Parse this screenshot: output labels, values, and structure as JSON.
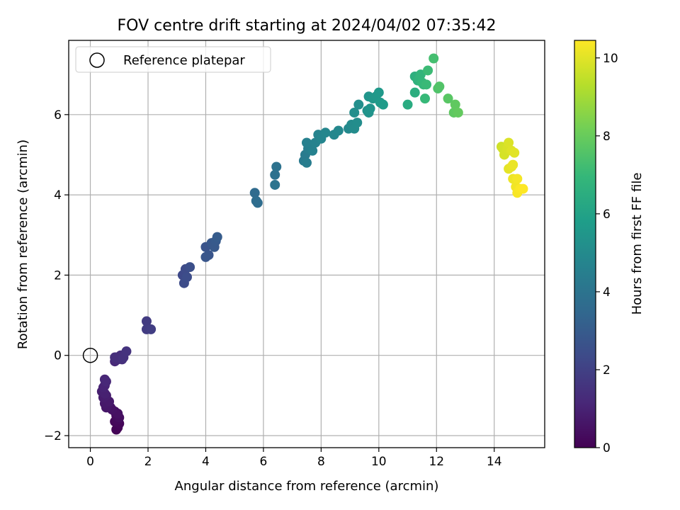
{
  "chart_data": {
    "type": "scatter",
    "title": "FOV centre drift starting at 2024/04/02 07:35:42",
    "xlabel": "Angular distance from reference (arcmin)",
    "ylabel": "Rotation from reference (arcmin)",
    "xlim": [
      -0.75,
      15.75
    ],
    "ylim": [
      -2.3,
      7.85
    ],
    "xticks": [
      0,
      2,
      4,
      6,
      8,
      10,
      12,
      14
    ],
    "yticks": [
      -2,
      0,
      2,
      4,
      6
    ],
    "grid": true,
    "legend": {
      "placement": "top-left",
      "entries": [
        "Reference platepar"
      ]
    },
    "reference_point": {
      "x": 0,
      "y": 0,
      "marker": "hollow-circle",
      "edge_color": "#000000"
    },
    "colorbar": {
      "label": "Hours from first FF file",
      "min": 0,
      "max": 10.45,
      "ticks": [
        0,
        2,
        4,
        6,
        8,
        10
      ],
      "colormap": "viridis",
      "colormap_stops": [
        "#440154",
        "#482878",
        "#3e4a89",
        "#31688e",
        "#26828e",
        "#1f9e89",
        "#35b779",
        "#6ece58",
        "#b5de2b",
        "#fde725"
      ]
    },
    "series": [
      {
        "points": [
          {
            "x": 0.9,
            "y": -1.85,
            "c": 0.05
          },
          {
            "x": 0.95,
            "y": -1.8,
            "c": 0.1
          },
          {
            "x": 1.0,
            "y": -1.7,
            "c": 0.15
          },
          {
            "x": 0.85,
            "y": -1.65,
            "c": 0.2
          },
          {
            "x": 0.95,
            "y": -1.6,
            "c": 0.25
          },
          {
            "x": 0.9,
            "y": -1.5,
            "c": 0.3
          },
          {
            "x": 1.0,
            "y": -1.55,
            "c": 0.35
          },
          {
            "x": 0.85,
            "y": -1.4,
            "c": 0.4
          },
          {
            "x": 0.95,
            "y": -1.45,
            "c": 0.45
          },
          {
            "x": 0.75,
            "y": -1.35,
            "c": 0.5
          },
          {
            "x": 0.7,
            "y": -1.3,
            "c": 0.55
          },
          {
            "x": 0.6,
            "y": -1.25,
            "c": 0.6
          },
          {
            "x": 0.55,
            "y": -1.3,
            "c": 0.65
          },
          {
            "x": 0.5,
            "y": -1.2,
            "c": 0.7
          },
          {
            "x": 0.65,
            "y": -1.15,
            "c": 0.75
          },
          {
            "x": 0.45,
            "y": -1.05,
            "c": 0.8
          },
          {
            "x": 0.55,
            "y": -1.0,
            "c": 0.85
          },
          {
            "x": 0.4,
            "y": -0.9,
            "c": 0.9
          },
          {
            "x": 0.5,
            "y": -0.95,
            "c": 0.95
          },
          {
            "x": 0.45,
            "y": -0.8,
            "c": 1.0
          },
          {
            "x": 0.5,
            "y": -0.75,
            "c": 1.05
          },
          {
            "x": 0.5,
            "y": -0.6,
            "c": 1.1
          },
          {
            "x": 0.55,
            "y": -0.65,
            "c": 1.15
          },
          {
            "x": 0.85,
            "y": -0.15,
            "c": 1.2
          },
          {
            "x": 0.9,
            "y": -0.05,
            "c": 1.25
          },
          {
            "x": 0.95,
            "y": -0.1,
            "c": 1.3
          },
          {
            "x": 1.05,
            "y": 0.0,
            "c": 1.35
          },
          {
            "x": 0.85,
            "y": -0.05,
            "c": 1.4
          },
          {
            "x": 1.1,
            "y": -0.1,
            "c": 1.45
          },
          {
            "x": 1.15,
            "y": -0.05,
            "c": 1.5
          },
          {
            "x": 1.25,
            "y": 0.1,
            "c": 1.55
          },
          {
            "x": 1.95,
            "y": 0.85,
            "c": 1.8
          },
          {
            "x": 1.95,
            "y": 0.65,
            "c": 1.85
          },
          {
            "x": 2.1,
            "y": 0.65,
            "c": 1.9
          },
          {
            "x": 3.2,
            "y": 2.0,
            "c": 2.3
          },
          {
            "x": 3.3,
            "y": 2.15,
            "c": 2.35
          },
          {
            "x": 3.25,
            "y": 1.8,
            "c": 2.4
          },
          {
            "x": 3.35,
            "y": 1.95,
            "c": 2.45
          },
          {
            "x": 3.45,
            "y": 2.2,
            "c": 2.5
          },
          {
            "x": 4.0,
            "y": 2.7,
            "c": 2.7
          },
          {
            "x": 4.1,
            "y": 2.5,
            "c": 2.75
          },
          {
            "x": 4.0,
            "y": 2.45,
            "c": 2.8
          },
          {
            "x": 4.2,
            "y": 2.8,
            "c": 2.85
          },
          {
            "x": 4.3,
            "y": 2.7,
            "c": 2.9
          },
          {
            "x": 4.35,
            "y": 2.85,
            "c": 2.95
          },
          {
            "x": 4.4,
            "y": 2.95,
            "c": 3.0
          },
          {
            "x": 5.7,
            "y": 4.05,
            "c": 3.6
          },
          {
            "x": 5.75,
            "y": 3.85,
            "c": 3.65
          },
          {
            "x": 5.8,
            "y": 3.8,
            "c": 3.7
          },
          {
            "x": 6.4,
            "y": 4.5,
            "c": 3.9
          },
          {
            "x": 6.45,
            "y": 4.7,
            "c": 3.95
          },
          {
            "x": 6.4,
            "y": 4.25,
            "c": 4.0
          },
          {
            "x": 7.4,
            "y": 4.85,
            "c": 4.3
          },
          {
            "x": 7.45,
            "y": 5.0,
            "c": 4.35
          },
          {
            "x": 7.5,
            "y": 4.8,
            "c": 4.4
          },
          {
            "x": 7.55,
            "y": 5.15,
            "c": 4.45
          },
          {
            "x": 7.6,
            "y": 5.25,
            "c": 4.5
          },
          {
            "x": 7.5,
            "y": 5.3,
            "c": 4.55
          },
          {
            "x": 7.7,
            "y": 5.1,
            "c": 4.6
          },
          {
            "x": 7.8,
            "y": 5.3,
            "c": 4.65
          },
          {
            "x": 7.9,
            "y": 5.5,
            "c": 4.7
          },
          {
            "x": 8.0,
            "y": 5.4,
            "c": 4.75
          },
          {
            "x": 8.15,
            "y": 5.55,
            "c": 4.8
          },
          {
            "x": 8.45,
            "y": 5.5,
            "c": 4.85
          },
          {
            "x": 8.6,
            "y": 5.6,
            "c": 4.9
          },
          {
            "x": 8.95,
            "y": 5.65,
            "c": 4.95
          },
          {
            "x": 9.05,
            "y": 5.75,
            "c": 5.0
          },
          {
            "x": 9.15,
            "y": 5.65,
            "c": 5.05
          },
          {
            "x": 9.25,
            "y": 5.8,
            "c": 5.1
          },
          {
            "x": 9.15,
            "y": 6.05,
            "c": 5.15
          },
          {
            "x": 9.3,
            "y": 6.25,
            "c": 5.2
          },
          {
            "x": 9.6,
            "y": 6.1,
            "c": 5.3
          },
          {
            "x": 9.65,
            "y": 6.05,
            "c": 5.35
          },
          {
            "x": 9.7,
            "y": 6.15,
            "c": 5.4
          },
          {
            "x": 9.65,
            "y": 6.45,
            "c": 5.45
          },
          {
            "x": 9.8,
            "y": 6.4,
            "c": 5.5
          },
          {
            "x": 9.9,
            "y": 6.45,
            "c": 5.55
          },
          {
            "x": 10.0,
            "y": 6.55,
            "c": 5.6
          },
          {
            "x": 10.05,
            "y": 6.3,
            "c": 5.65
          },
          {
            "x": 10.15,
            "y": 6.25,
            "c": 5.7
          },
          {
            "x": 11.0,
            "y": 6.25,
            "c": 6.4
          },
          {
            "x": 11.25,
            "y": 6.55,
            "c": 6.5
          },
          {
            "x": 11.25,
            "y": 6.95,
            "c": 6.6
          },
          {
            "x": 11.35,
            "y": 6.85,
            "c": 6.7
          },
          {
            "x": 11.4,
            "y": 6.9,
            "c": 6.8
          },
          {
            "x": 11.45,
            "y": 7.0,
            "c": 6.85
          },
          {
            "x": 11.5,
            "y": 6.8,
            "c": 6.9
          },
          {
            "x": 11.55,
            "y": 6.75,
            "c": 6.95
          },
          {
            "x": 11.6,
            "y": 6.4,
            "c": 7.0
          },
          {
            "x": 11.65,
            "y": 6.75,
            "c": 7.05
          },
          {
            "x": 11.7,
            "y": 7.1,
            "c": 7.1
          },
          {
            "x": 11.9,
            "y": 7.4,
            "c": 7.3
          },
          {
            "x": 12.05,
            "y": 6.65,
            "c": 7.5
          },
          {
            "x": 12.1,
            "y": 6.7,
            "c": 7.55
          },
          {
            "x": 12.4,
            "y": 6.4,
            "c": 7.7
          },
          {
            "x": 12.6,
            "y": 6.05,
            "c": 7.8
          },
          {
            "x": 12.65,
            "y": 6.25,
            "c": 7.85
          },
          {
            "x": 12.75,
            "y": 6.05,
            "c": 7.9
          },
          {
            "x": 14.25,
            "y": 5.2,
            "c": 9.7
          },
          {
            "x": 14.3,
            "y": 5.15,
            "c": 9.75
          },
          {
            "x": 14.35,
            "y": 5.0,
            "c": 9.8
          },
          {
            "x": 14.45,
            "y": 5.15,
            "c": 9.85
          },
          {
            "x": 14.5,
            "y": 5.3,
            "c": 9.9
          },
          {
            "x": 14.6,
            "y": 5.1,
            "c": 9.95
          },
          {
            "x": 14.7,
            "y": 5.05,
            "c": 10.0
          },
          {
            "x": 14.5,
            "y": 4.65,
            "c": 10.05
          },
          {
            "x": 14.6,
            "y": 4.7,
            "c": 10.1
          },
          {
            "x": 14.65,
            "y": 4.75,
            "c": 10.15
          },
          {
            "x": 14.65,
            "y": 4.4,
            "c": 10.2
          },
          {
            "x": 14.75,
            "y": 4.2,
            "c": 10.25
          },
          {
            "x": 14.8,
            "y": 4.4,
            "c": 10.3
          },
          {
            "x": 14.8,
            "y": 4.05,
            "c": 10.35
          },
          {
            "x": 14.9,
            "y": 4.15,
            "c": 10.4
          },
          {
            "x": 15.0,
            "y": 4.15,
            "c": 10.45
          }
        ]
      }
    ]
  }
}
